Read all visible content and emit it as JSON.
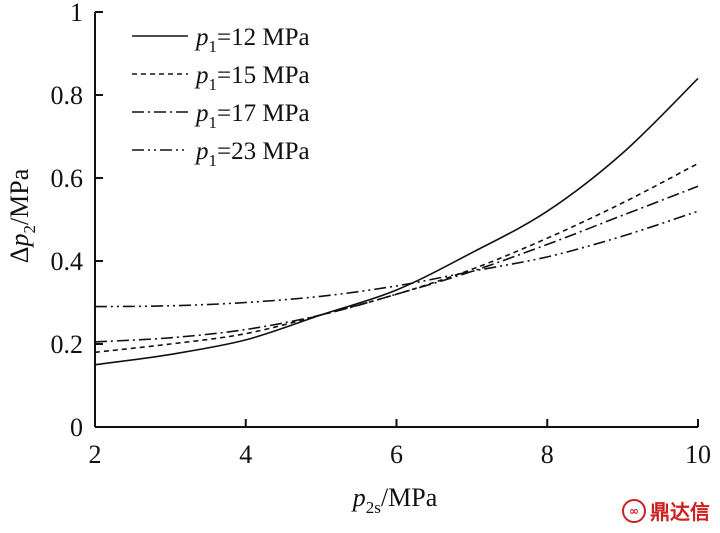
{
  "chart_data": {
    "type": "line",
    "xlabel": {
      "main": "p",
      "sub": "2s",
      "unit": "/MPa"
    },
    "ylabel": {
      "prefix": "Δ",
      "main": "p",
      "sub": "2",
      "unit": "/MPa"
    },
    "xlim": [
      2,
      10
    ],
    "ylim": [
      0,
      1
    ],
    "xticks": [
      "2",
      "4",
      "6",
      "8",
      "10"
    ],
    "yticks": [
      "0",
      "0.2",
      "0.4",
      "0.6",
      "0.8",
      "1"
    ],
    "legend_position": "top-left",
    "series": [
      {
        "name": {
          "var": "p",
          "sub": "1",
          "text": "=12 MPa"
        },
        "dash": "solid",
        "x": [
          2,
          3,
          4,
          5,
          6,
          7,
          8,
          9,
          10
        ],
        "y": [
          0.15,
          0.175,
          0.21,
          0.27,
          0.33,
          0.42,
          0.52,
          0.66,
          0.84
        ]
      },
      {
        "name": {
          "var": "p",
          "sub": "1",
          "text": "=15 MPa"
        },
        "dash": "dashed",
        "x": [
          2,
          3,
          4,
          5,
          6,
          7,
          8,
          9,
          10
        ],
        "y": [
          0.18,
          0.2,
          0.225,
          0.27,
          0.32,
          0.38,
          0.455,
          0.54,
          0.635
        ]
      },
      {
        "name": {
          "var": "p",
          "sub": "1",
          "text": "=17 MPa"
        },
        "dash": "dashdot",
        "x": [
          2,
          3,
          4,
          5,
          6,
          7,
          8,
          9,
          10
        ],
        "y": [
          0.205,
          0.215,
          0.235,
          0.27,
          0.32,
          0.375,
          0.44,
          0.51,
          0.58
        ]
      },
      {
        "name": {
          "var": "p",
          "sub": "1",
          "text": "=23 MPa"
        },
        "dash": "dashdotdot",
        "x": [
          2,
          3,
          4,
          5,
          6,
          7,
          8,
          9,
          10
        ],
        "y": [
          0.29,
          0.292,
          0.3,
          0.315,
          0.34,
          0.375,
          0.41,
          0.46,
          0.52
        ]
      }
    ]
  },
  "watermark": {
    "logo_text": "∞",
    "text": "鼎达信"
  },
  "colors": {
    "line": "#111111",
    "watermark": "#cc1f1f"
  }
}
